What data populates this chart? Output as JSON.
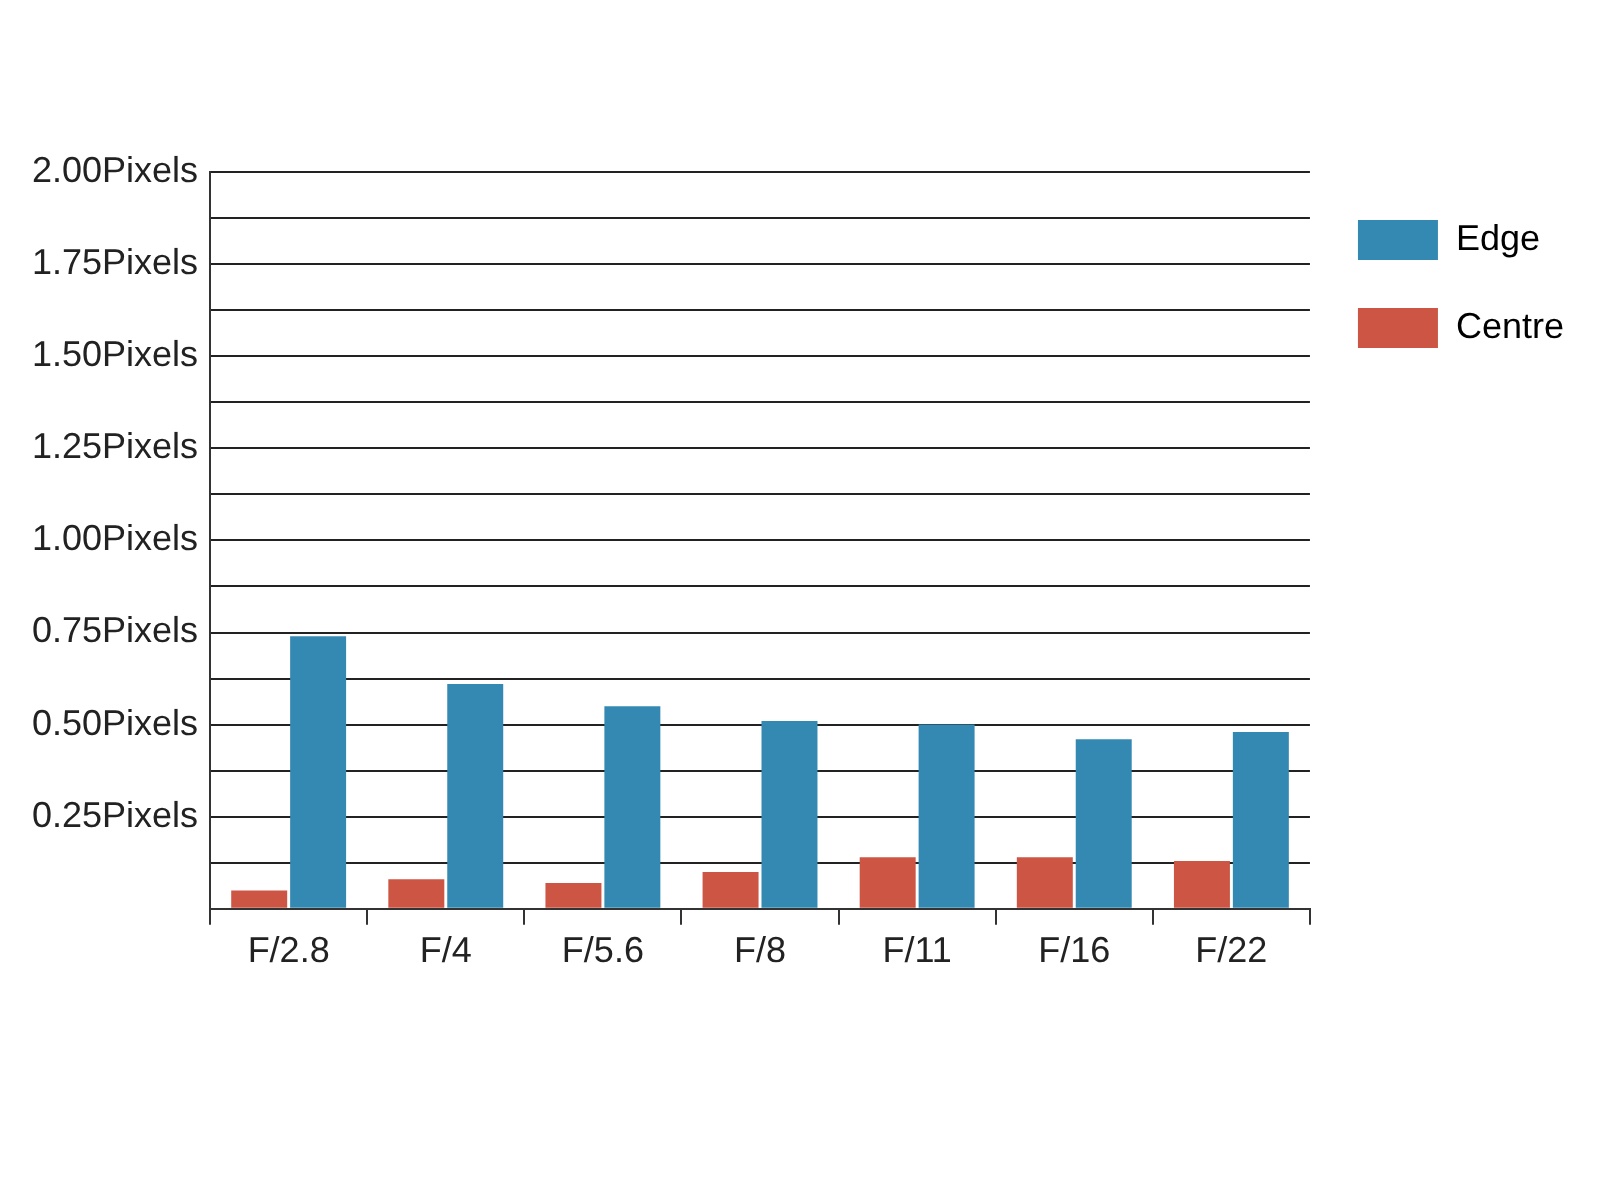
{
  "chart_data": {
    "type": "bar",
    "categories": [
      "F/2.8",
      "F/4",
      "F/5.6",
      "F/8",
      "F/11",
      "F/16",
      "F/22"
    ],
    "series": [
      {
        "name": "Centre",
        "color": "#cc5544",
        "values": [
          0.05,
          0.08,
          0.07,
          0.1,
          0.14,
          0.14,
          0.13
        ]
      },
      {
        "name": "Edge",
        "color": "#3489b2",
        "values": [
          0.74,
          0.61,
          0.55,
          0.51,
          0.5,
          0.46,
          0.48
        ]
      }
    ],
    "ylim": [
      0,
      2
    ],
    "yticks": [
      {
        "value": 0,
        "label": null
      },
      {
        "value": 0.125,
        "label": null
      },
      {
        "value": 0.25,
        "label": "0.25Pixels"
      },
      {
        "value": 0.375,
        "label": null
      },
      {
        "value": 0.5,
        "label": "0.50Pixels"
      },
      {
        "value": 0.625,
        "label": null
      },
      {
        "value": 0.75,
        "label": "0.75Pixels"
      },
      {
        "value": 0.875,
        "label": null
      },
      {
        "value": 1,
        "label": "1.00Pixels"
      },
      {
        "value": 1.125,
        "label": null
      },
      {
        "value": 1.25,
        "label": "1.25Pixels"
      },
      {
        "value": 1.375,
        "label": null
      },
      {
        "value": 1.5,
        "label": "1.50Pixels"
      },
      {
        "value": 1.625,
        "label": null
      },
      {
        "value": 1.75,
        "label": "1.75Pixels"
      },
      {
        "value": 1.875,
        "label": null
      },
      {
        "value": 2,
        "label": "2.00Pixels"
      }
    ],
    "grid": "y",
    "legend": "top right"
  }
}
